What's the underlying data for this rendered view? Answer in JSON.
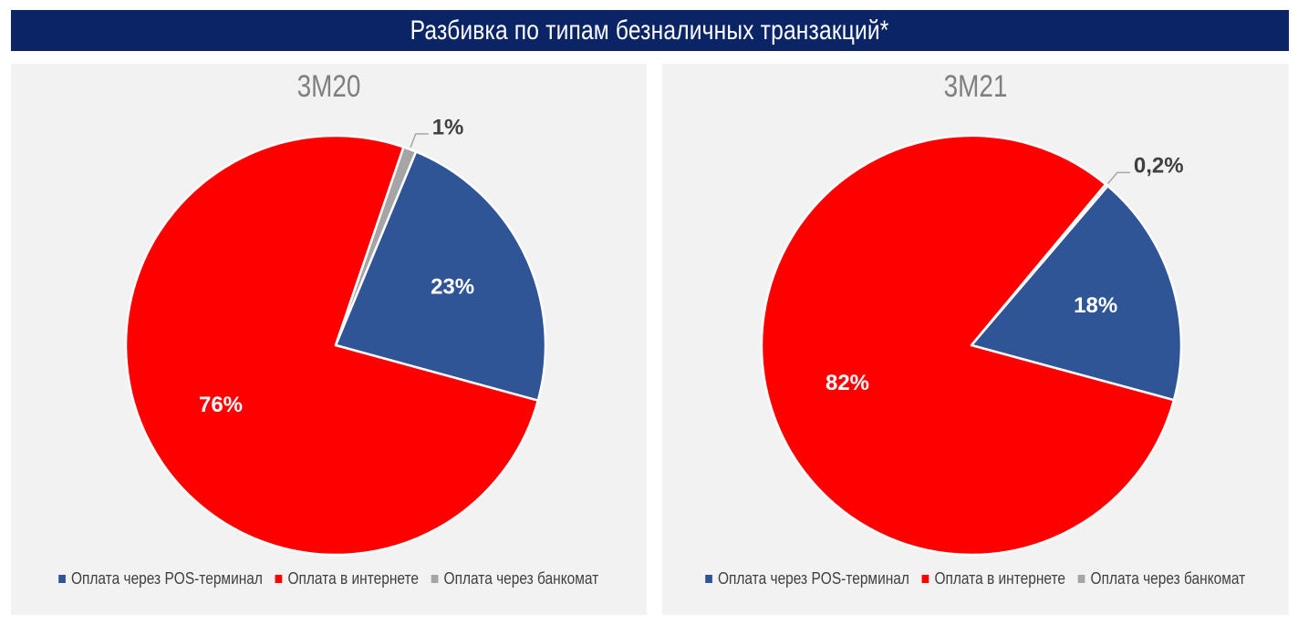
{
  "header": {
    "title": "Разбивка по типам безналичных транзакций*"
  },
  "colors": {
    "pos": "#2f5597",
    "internet": "#ff0000",
    "atm": "#a5a5a5",
    "header_bg": "#0b2466"
  },
  "legend": {
    "items": [
      {
        "label": "Оплата через POS-терминал",
        "color": "#2f5597"
      },
      {
        "label": "Оплата в интернете",
        "color": "#ff0000"
      },
      {
        "label": "Оплата через банкомат",
        "color": "#a5a5a5"
      }
    ]
  },
  "chart_data": [
    {
      "type": "pie",
      "title": "3М20",
      "slices": [
        {
          "name": "Оплата через POS-терминал",
          "value": 23,
          "label": "23%",
          "color": "#2f5597"
        },
        {
          "name": "Оплата в интернете",
          "value": 76,
          "label": "76%",
          "color": "#ff0000"
        },
        {
          "name": "Оплата через банкомат",
          "value": 1,
          "label": "1%",
          "color": "#a5a5a5"
        }
      ],
      "legend_position": "bottom"
    },
    {
      "type": "pie",
      "title": "3М21",
      "slices": [
        {
          "name": "Оплата через POS-терминал",
          "value": 18,
          "label": "18%",
          "color": "#2f5597"
        },
        {
          "name": "Оплата в интернете",
          "value": 82,
          "label": "82%",
          "color": "#ff0000"
        },
        {
          "name": "Оплата через банкомат",
          "value": 0.2,
          "label": "0,2%",
          "color": "#a5a5a5"
        }
      ],
      "legend_position": "bottom"
    }
  ]
}
